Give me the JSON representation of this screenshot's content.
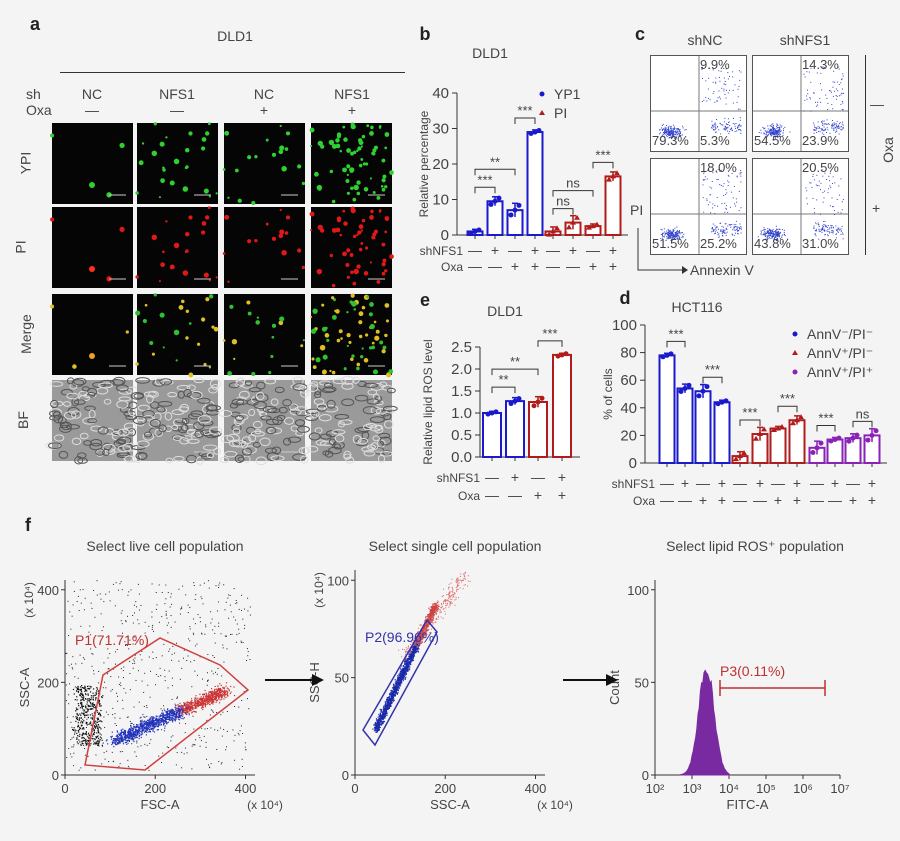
{
  "panel_a": {
    "label": "a",
    "cell_line": "DLD1",
    "sh_label": "sh",
    "oxa_label": "Oxa",
    "columns": [
      {
        "sh": "NC",
        "oxa": "—"
      },
      {
        "sh": "NFS1",
        "oxa": "—"
      },
      {
        "sh": "NC",
        "oxa": "+"
      },
      {
        "sh": "NFS1",
        "oxa": "+"
      }
    ],
    "rows": [
      "YPI",
      "PI",
      "Merge",
      "BF"
    ]
  },
  "panel_c": {
    "label": "c",
    "columns": [
      "shNC",
      "shNFS1"
    ],
    "oxa_label": "Oxa",
    "oxa_rows": [
      "—",
      "+"
    ],
    "y_label": "PI",
    "x_label": "Annexin V",
    "quadrants": [
      [
        "9.9%",
        "79.3%",
        "5.3%"
      ],
      [
        "14.3%",
        "54.5%",
        "23.9%"
      ],
      [
        "18.0%",
        "51.5%",
        "25.2%"
      ],
      [
        "20.5%",
        "43.8%",
        "31.0%"
      ]
    ]
  },
  "panel_f": {
    "label": "f",
    "plots": [
      {
        "title": "Select live cell population",
        "xlabel": "FSC-A",
        "ylabel": "SSC-A",
        "xunit": "(x 10⁴)",
        "yunit": "(x 10⁴)",
        "xticks": [
          "0",
          "200",
          "400"
        ],
        "yticks": [
          "0",
          "200",
          "400"
        ],
        "gate": "P1(71.71%)"
      },
      {
        "title": "Select single cell population",
        "xlabel": "SSC-A",
        "ylabel": "SSC-H",
        "xunit": "(x 10⁴)",
        "yunit": "(x 10⁴)",
        "xticks": [
          "0",
          "200",
          "400"
        ],
        "yticks": [
          "0",
          "50",
          "100"
        ],
        "gate": "P2(96.96%)"
      },
      {
        "title": "Select lipid ROS⁺ population",
        "xlabel": "FITC-A",
        "ylabel": "Count",
        "xticks": [
          "10²",
          "10³",
          "10⁴",
          "10⁵",
          "10⁶",
          "10⁷"
        ],
        "yticks": [
          "0",
          "50",
          "100"
        ],
        "gate": "P3(0.11%)"
      }
    ]
  },
  "colors": {
    "blue": "#1a1acc",
    "red": "#b01c1c",
    "purple": "#8a22b8"
  },
  "chart_data": [
    {
      "id": "b",
      "type": "bar",
      "label": "b",
      "title": "DLD1",
      "ylabel": "Relative percentage",
      "ylim": [
        0,
        40
      ],
      "yticks": [
        "0",
        "10",
        "20",
        "30",
        "40"
      ],
      "row_labels": [
        "shNFS1",
        "Oxa"
      ],
      "shNFS1": [
        "—",
        "+",
        "—",
        "+",
        "—",
        "+",
        "—",
        "+"
      ],
      "oxa": [
        "—",
        "—",
        "+",
        "+",
        "—",
        "—",
        "+",
        "+"
      ],
      "legend": "top-right",
      "series": [
        {
          "name": "YP1",
          "color": "#1a1acc",
          "marker": "circle",
          "values": [
            1,
            9.5,
            7,
            29
          ]
        },
        {
          "name": "PI",
          "color": "#b01c1c",
          "marker": "triangle",
          "values": [
            1,
            3.5,
            2.5,
            16.5
          ]
        }
      ],
      "annotations": [
        {
          "from": 0,
          "to": 1,
          "text": "***"
        },
        {
          "from": 0,
          "to": 2,
          "text": "**"
        },
        {
          "from": 2,
          "to": 3,
          "text": "***"
        },
        {
          "from": 4,
          "to": 5,
          "text": "ns"
        },
        {
          "from": 4,
          "to": 6,
          "text": "ns"
        },
        {
          "from": 6,
          "to": 7,
          "text": "***"
        }
      ]
    },
    {
      "id": "e",
      "type": "bar",
      "label": "e",
      "title": "DLD1",
      "ylabel": "Relative lipid ROS level",
      "ylim": [
        0,
        2.5
      ],
      "yticks": [
        "0.0",
        "0.5",
        "1.0",
        "1.5",
        "2.0",
        "2.5"
      ],
      "row_labels": [
        "shNFS1",
        "Oxa"
      ],
      "shNFS1": [
        "—",
        "+",
        "—",
        "+"
      ],
      "oxa": [
        "—",
        "—",
        "+",
        "+"
      ],
      "series": [
        {
          "color_per_bar": [
            "#1a1acc",
            "#1a1acc",
            "#b01c1c",
            "#b01c1c"
          ],
          "values": [
            1.0,
            1.27,
            1.25,
            2.32
          ]
        }
      ],
      "annotations": [
        {
          "from": 0,
          "to": 1,
          "text": "**"
        },
        {
          "from": 0,
          "to": 2,
          "text": "**"
        },
        {
          "from": 2,
          "to": 3,
          "text": "***"
        }
      ]
    },
    {
      "id": "d",
      "type": "bar",
      "label": "d",
      "title": "HCT116",
      "ylabel": "% of cells",
      "ylim": [
        0,
        100
      ],
      "yticks": [
        "0",
        "20",
        "40",
        "60",
        "80",
        "100"
      ],
      "row_labels": [
        "shNFS1",
        "Oxa"
      ],
      "shNFS1": [
        "—",
        "+",
        "—",
        "+",
        "—",
        "+",
        "—",
        "+",
        "—",
        "+",
        "—",
        "+"
      ],
      "oxa": [
        "—",
        "—",
        "+",
        "+",
        "—",
        "—",
        "+",
        "+",
        "—",
        "—",
        "+",
        "+"
      ],
      "legend": "top-right",
      "series": [
        {
          "name": "AnnV⁻/PI⁻",
          "color": "#1a1acc",
          "marker": "circle",
          "values": [
            78,
            54,
            52,
            44
          ]
        },
        {
          "name": "AnnV⁺/PI⁻",
          "color": "#b01c1c",
          "marker": "triangle",
          "values": [
            5,
            21,
            25,
            31
          ]
        },
        {
          "name": "AnnV⁺/PI⁺",
          "color": "#8a22b8",
          "marker": "circle",
          "values": [
            11,
            17,
            18,
            20
          ]
        }
      ],
      "annotations": [
        {
          "from": 0,
          "to": 1,
          "text": "***"
        },
        {
          "from": 2,
          "to": 3,
          "text": "***"
        },
        {
          "from": 4,
          "to": 5,
          "text": "***"
        },
        {
          "from": 6,
          "to": 7,
          "text": "***"
        },
        {
          "from": 8,
          "to": 9,
          "text": "***"
        },
        {
          "from": 10,
          "to": 11,
          "text": "ns"
        }
      ]
    }
  ]
}
